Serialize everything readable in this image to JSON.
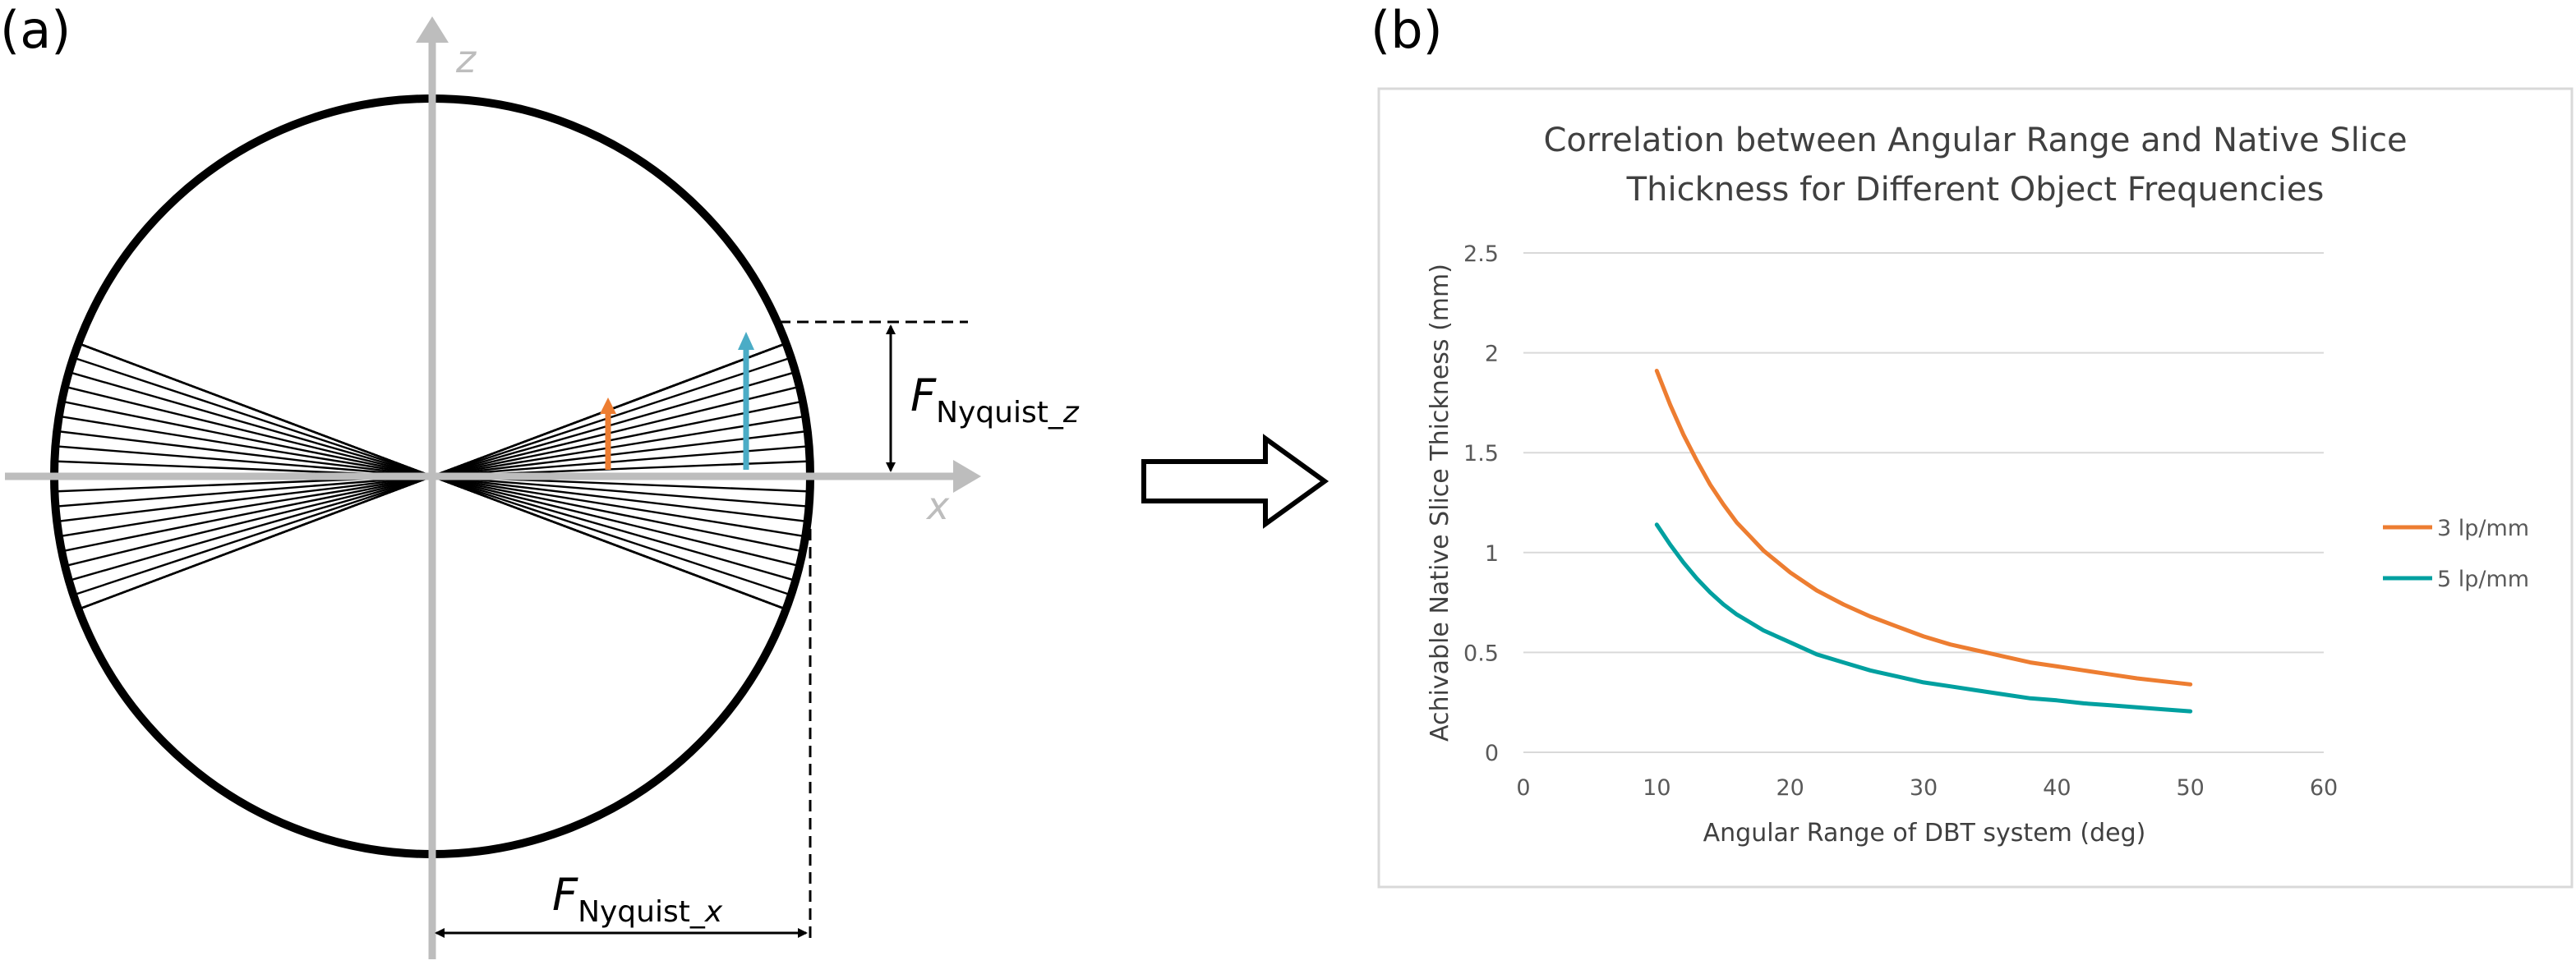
{
  "panel_a": {
    "label": "(a)",
    "axis_z_label": "z",
    "axis_x_label": "x",
    "f_symbol": "F",
    "nyquist_z_sub": "Nyquist_",
    "nyquist_z_var": "z",
    "nyquist_x_sub": "Nyquist_",
    "nyquist_x_var": "x",
    "orange_color": "#ED7D31",
    "teal_color": "#4BACC6"
  },
  "panel_b": {
    "label": "(b)"
  },
  "chart_data": {
    "type": "line",
    "title_line1": "Correlation between Angular Range and Native Slice",
    "title_line2": "Thickness for Different Object Frequencies",
    "xlabel": "Angular Range of DBT system (deg)",
    "ylabel": "Achivable Native Slice Thickness (mm)",
    "xlim": [
      0,
      60
    ],
    "ylim": [
      0,
      2.5
    ],
    "xticks": [
      "0",
      "10",
      "20",
      "30",
      "40",
      "50",
      "60"
    ],
    "yticks": [
      "0",
      "0.5",
      "1",
      "1.5",
      "2",
      "2.5"
    ],
    "grid": "horizontal",
    "legend_position": "right",
    "series": [
      {
        "name": "3 lp/mm",
        "color": "#ED7D31",
        "x": [
          10,
          11,
          12,
          13,
          14,
          15,
          16,
          17,
          18,
          20,
          22,
          24,
          26,
          28,
          30,
          32,
          34,
          36,
          38,
          40,
          42,
          44,
          46,
          48,
          50
        ],
        "y": [
          1.91,
          1.74,
          1.59,
          1.46,
          1.34,
          1.24,
          1.15,
          1.08,
          1.01,
          0.9,
          0.81,
          0.74,
          0.68,
          0.63,
          0.58,
          0.54,
          0.51,
          0.48,
          0.45,
          0.43,
          0.41,
          0.39,
          0.37,
          0.355,
          0.34
        ]
      },
      {
        "name": "5 lp/mm",
        "color": "#00A0A0",
        "x": [
          10,
          11,
          12,
          13,
          14,
          15,
          16,
          17,
          18,
          20,
          22,
          24,
          26,
          28,
          30,
          32,
          34,
          36,
          38,
          40,
          42,
          44,
          46,
          48,
          50
        ],
        "y": [
          1.14,
          1.04,
          0.95,
          0.87,
          0.8,
          0.74,
          0.69,
          0.65,
          0.61,
          0.55,
          0.49,
          0.45,
          0.41,
          0.38,
          0.35,
          0.33,
          0.31,
          0.29,
          0.27,
          0.26,
          0.245,
          0.235,
          0.225,
          0.215,
          0.205
        ]
      }
    ]
  }
}
